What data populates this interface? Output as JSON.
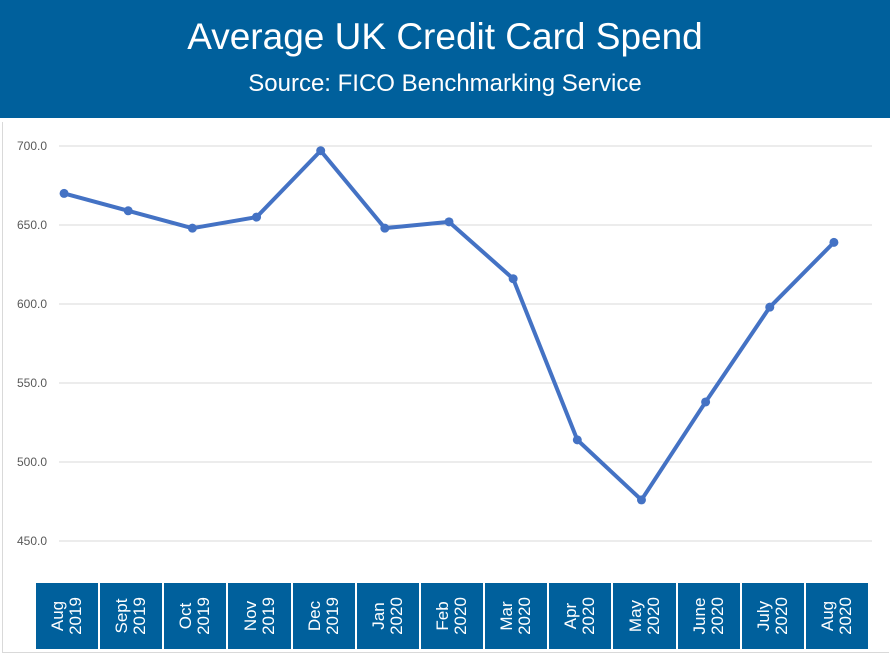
{
  "chart_data": {
    "type": "line",
    "title": "Average UK Credit Card Spend",
    "subtitle": "Source: FICO Benchmarking Service",
    "categories": [
      "Aug\n2019",
      "Sept\n2019",
      "Oct\n2019",
      "Nov\n2019",
      "Dec\n2019",
      "Jan\n2020",
      "Feb\n2020",
      "Mar\n2020",
      "Apr\n2020",
      "May\n2020",
      "June\n2020",
      "July\n2020",
      "Aug\n2020"
    ],
    "values": [
      670,
      659,
      648,
      655,
      697,
      648,
      652,
      616,
      514,
      476,
      538,
      598,
      639
    ],
    "yticks": [
      "700.0",
      "650.0",
      "600.0",
      "550.0",
      "500.0",
      "450.0"
    ],
    "ylim": [
      450,
      700
    ],
    "grid": true,
    "line_color": "#4472c4",
    "header_color": "#00609c"
  }
}
